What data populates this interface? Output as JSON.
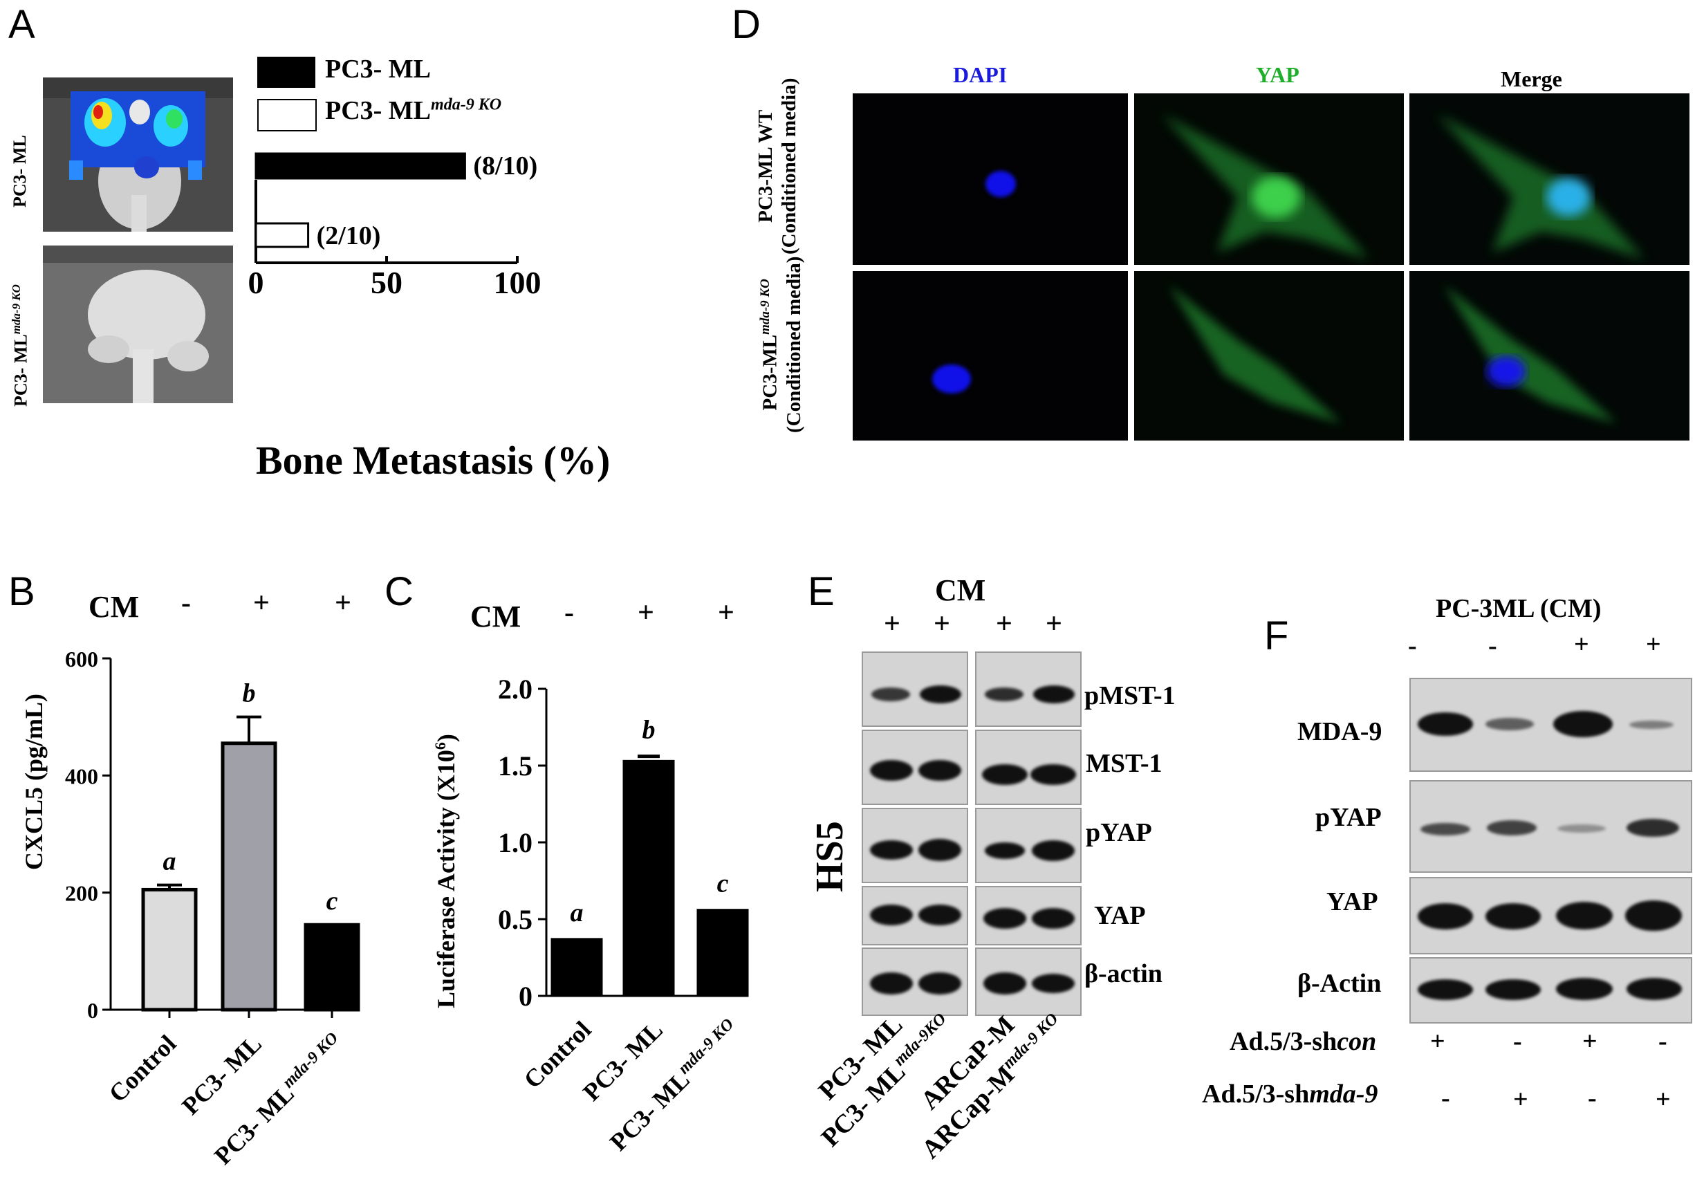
{
  "panels": {
    "A": {
      "letter": "A",
      "legend": [
        {
          "base": "PC3- ML",
          "sup": "",
          "fill": "#000000"
        },
        {
          "base": "PC3- ML",
          "sup": "mda-9 KO",
          "fill": "#ffffff"
        }
      ],
      "photo_labels": [
        {
          "base": "PC3- ML",
          "sup": ""
        },
        {
          "base": "PC3- ML",
          "sup": "mda-9 KO"
        }
      ],
      "ticks": [
        "0",
        "50",
        "100"
      ],
      "xlabel": "Bone Metastasis (%)"
    },
    "B": {
      "letter": "B",
      "cm_label": "CM",
      "cm_signs": [
        "-",
        "+",
        "+"
      ],
      "ylabel": "CXCL5 (pg/mL)",
      "yticks": [
        "0",
        "200",
        "400",
        "600"
      ],
      "categories": [
        {
          "base": "Control",
          "sup": ""
        },
        {
          "base": "PC3- ML",
          "sup": ""
        },
        {
          "base": "PC3- ML",
          "sup": "mda-9 KO"
        }
      ],
      "letters": [
        "a",
        "b",
        "c"
      ]
    },
    "C": {
      "letter": "C",
      "cm_label": "CM",
      "cm_signs": [
        "-",
        "+",
        "+"
      ],
      "ylabel_base": "Luciferase Activity  (X10",
      "ylabel_sup": "6",
      "ylabel_end": ")",
      "yticks": [
        "0",
        "0.5",
        "1.0",
        "1.5",
        "2.0"
      ],
      "categories": [
        {
          "base": "Control",
          "sup": ""
        },
        {
          "base": "PC3- ML",
          "sup": ""
        },
        {
          "base": "PC3- ML",
          "sup": "mda-9 KO"
        }
      ],
      "letters": [
        "a",
        "b",
        "c"
      ]
    },
    "D": {
      "letter": "D",
      "columns": [
        "DAPI",
        "YAP",
        "Merge"
      ],
      "column_colors": [
        "#1a1adc",
        "#1fae2a",
        "#000000"
      ],
      "row1_label_top": "PC3-ML  WT",
      "row1_label_sub": "(Conditioned media)",
      "row2_label_base": "PC3-ML",
      "row2_label_sup": "mda-9 KO",
      "row2_label_sub": "(Conditioned media)"
    },
    "E": {
      "letter": "E",
      "cm_label": "CM",
      "signs": [
        "+",
        "+",
        "+",
        "+"
      ],
      "side_label": "HS5",
      "proteins": [
        "pMST-1",
        "MST-1",
        "pYAP",
        "YAP",
        "β-actin"
      ],
      "lanes": [
        {
          "base": "PC3- ML",
          "sup": ""
        },
        {
          "base": "PC3- ML",
          "sup": "mda-9KO"
        },
        {
          "base": "ARCaP-M",
          "sup": ""
        },
        {
          "base": "ARCap-M",
          "sup": "mda-9 KO"
        }
      ]
    },
    "F": {
      "letter": "F",
      "header": "PC-3ML (CM)",
      "cm_signs": [
        "-",
        "-",
        "+",
        "+"
      ],
      "proteins": [
        "MDA-9",
        "pYAP",
        "YAP",
        "β-Actin"
      ],
      "row1_base": "Ad.5/3-sh",
      "row1_ital": "con",
      "row1_signs": [
        "+",
        "-",
        "+",
        "-"
      ],
      "row2_base": "Ad.5/3-sh",
      "row2_ital": "mda-9",
      "row2_signs": [
        "-",
        "+",
        "-",
        "+"
      ]
    }
  },
  "chart_data": [
    {
      "panel": "A",
      "type": "bar",
      "orientation": "horizontal",
      "xlabel": "Bone Metastasis (%)",
      "xlim": [
        0,
        100
      ],
      "categories": [
        "PC3- ML",
        "PC3- ML mda-9 KO"
      ],
      "values": [
        80,
        20
      ],
      "data_labels": [
        "(8/10)",
        "(2/10)"
      ]
    },
    {
      "panel": "B",
      "type": "bar",
      "ylabel": "CXCL5 (pg/mL)",
      "ylim": [
        0,
        600
      ],
      "categories": [
        "Control",
        "PC3- ML",
        "PC3- ML mda-9 KO"
      ],
      "values": [
        205,
        455,
        145
      ],
      "errors": [
        8,
        45,
        0
      ],
      "colors": [
        "#dcdcdc",
        "#a0a0a8",
        "#000000"
      ]
    },
    {
      "panel": "C",
      "type": "bar",
      "ylabel": "Luciferase Activity (X10^6)",
      "ylim": [
        0,
        2.0
      ],
      "categories": [
        "Control",
        "PC3- ML",
        "PC3- ML mda-9 KO"
      ],
      "values": [
        0.37,
        1.53,
        0.56
      ],
      "errors": [
        0,
        0.03,
        0
      ],
      "colors": [
        "#000000",
        "#000000",
        "#000000"
      ]
    }
  ]
}
